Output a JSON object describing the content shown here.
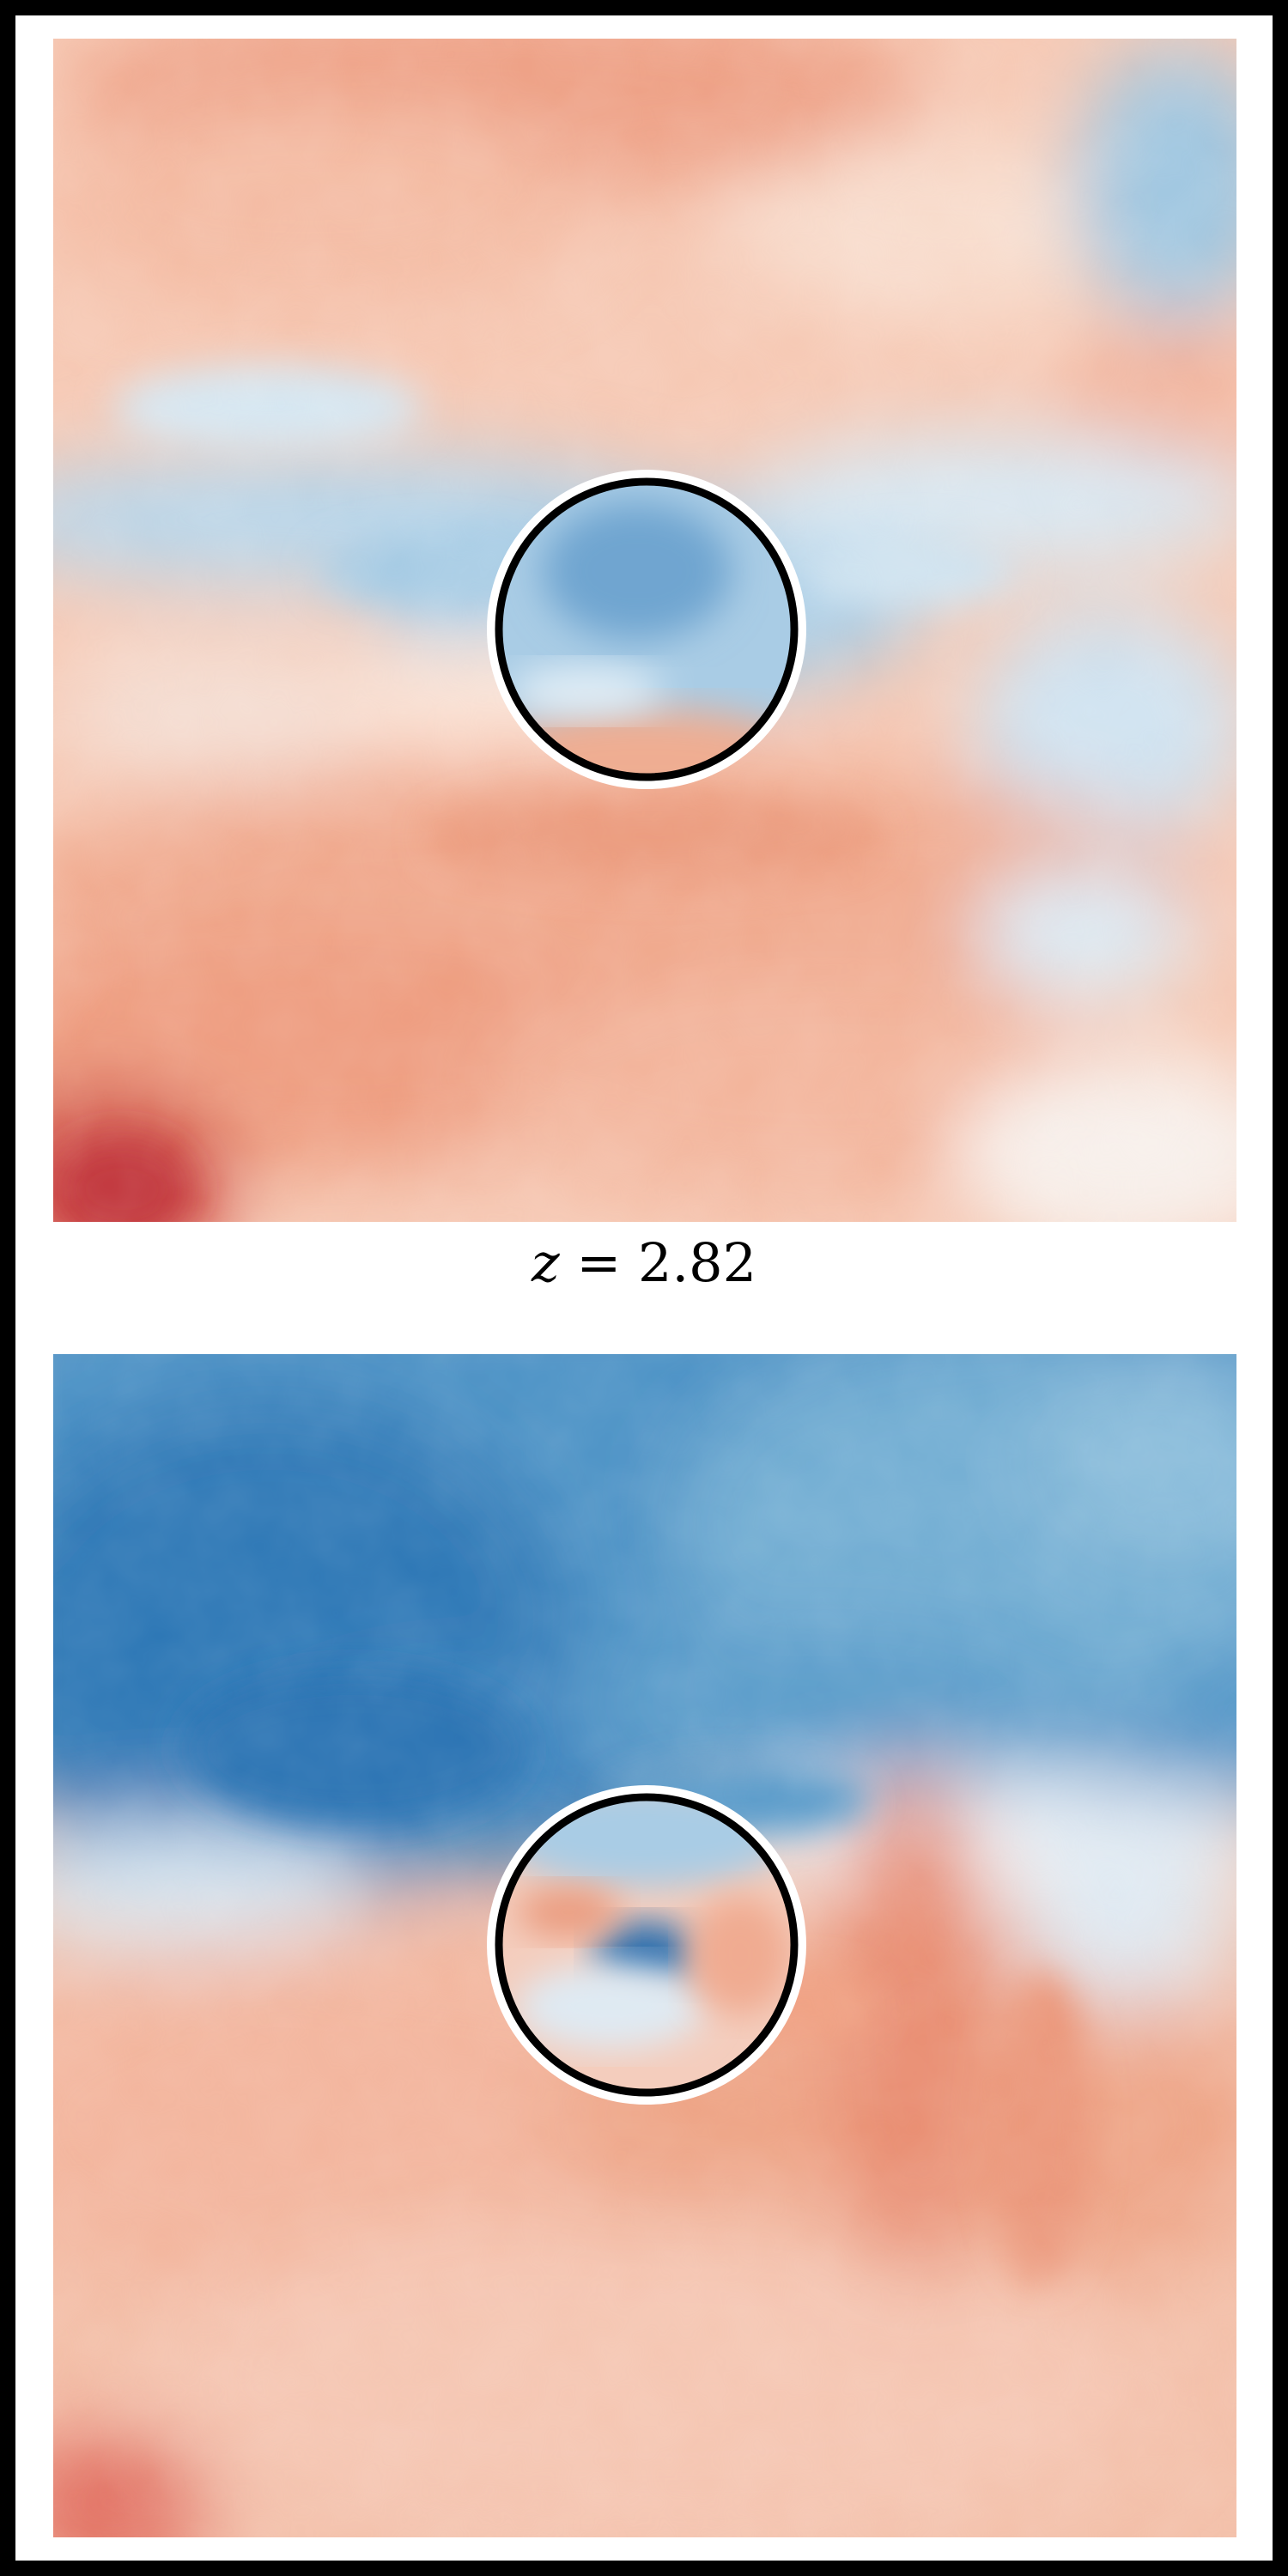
{
  "label": {
    "variable": "z",
    "equals": "=",
    "value": "2.82"
  },
  "colormap": {
    "negative": "#2c6fb0",
    "neutral": "#f7f7f7",
    "positive": "#c9313a"
  },
  "circle": {
    "outer_ring_color": "#ffffff",
    "inner_ring_color": "#000000"
  }
}
